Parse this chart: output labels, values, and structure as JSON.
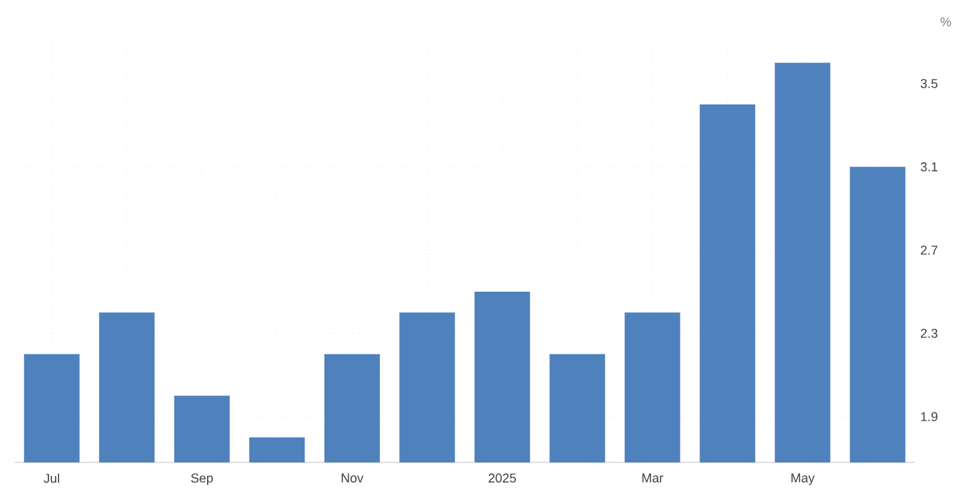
{
  "chart_data": {
    "type": "bar",
    "ylabel": "%",
    "categories": [
      "Jul",
      null,
      "Sep",
      null,
      "Nov",
      null,
      "2025",
      null,
      "Mar",
      null,
      "May",
      null
    ],
    "values": [
      2.2,
      2.4,
      2.0,
      1.8,
      2.2,
      2.4,
      2.5,
      2.2,
      2.4,
      3.4,
      3.6,
      3.1
    ],
    "color": "#4f81bd",
    "ylim": [
      1.68,
      3.71
    ],
    "yticks": [
      1.9,
      2.3,
      2.7,
      3.1,
      3.5
    ],
    "grid": true
  }
}
